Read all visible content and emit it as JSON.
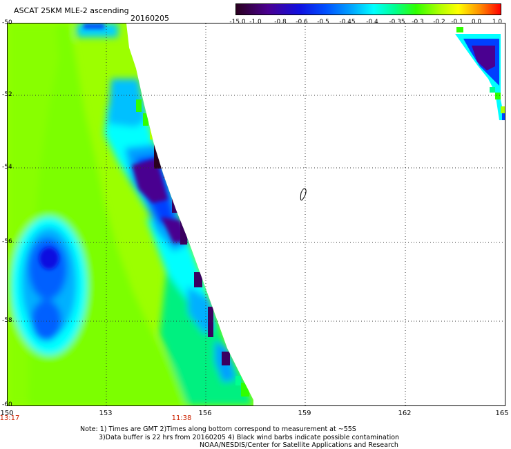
{
  "header": {
    "title": "ASCAT 25KM MLE-2 ascending",
    "date": "20160205"
  },
  "colorbar": {
    "labels": [
      "-15.0",
      "-1.0",
      "-0.8",
      "-0.6",
      "-0.5",
      "-0.45",
      "-0.4",
      "-0.35",
      "-0.3",
      "-0.2",
      "-0.1",
      "0.0",
      "1.0"
    ],
    "colors": [
      "#2a001e",
      "#4a0090",
      "#1010e0",
      "#0050ff",
      "#00a8ff",
      "#00ffff",
      "#00ff90",
      "#30ff00",
      "#b0ff00",
      "#ffff00",
      "#ff9000",
      "#ff0000"
    ]
  },
  "axes": {
    "lat_labels": [
      "-50",
      "-52",
      "-54",
      "-56",
      "-58",
      "-60"
    ],
    "lon_labels": [
      "150",
      "153",
      "156",
      "159",
      "162",
      "165"
    ],
    "time_labels": [
      "13:17",
      "11:38"
    ]
  },
  "note": {
    "line1": "Note: 1) Times are GMT 2)Times along bottom correspond to measurement at ~55S",
    "line2": "3)Data buffer is 22 hrs from 20160205 4) Black wind barbs indicate possible contamination",
    "line3": "NOAA/NESDIS/Center for Satellite Applications and Research"
  }
}
